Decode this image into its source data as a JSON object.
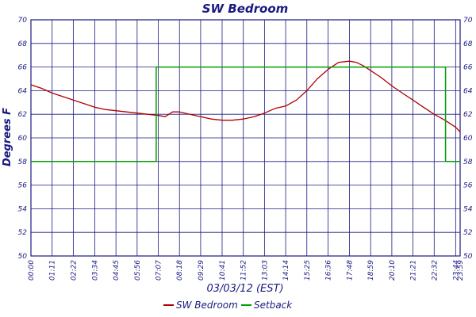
{
  "chart_data": {
    "type": "line",
    "title": "SW Bedroom",
    "xlabel": "03/03/12 (EST)",
    "ylabel": "Degrees F",
    "ylim": [
      50,
      70
    ],
    "yticks": [
      "50",
      "52",
      "54",
      "56",
      "58",
      "60",
      "62",
      "64",
      "66",
      "68",
      "70"
    ],
    "xlim": [
      "00:00",
      "23:59"
    ],
    "xticks": [
      "00:00",
      "01:11",
      "02:22",
      "03:34",
      "04:45",
      "05:56",
      "07:07",
      "08:18",
      "09:29",
      "10:41",
      "11:52",
      "13:03",
      "14:14",
      "15:25",
      "16:36",
      "17:48",
      "18:59",
      "20:10",
      "21:21",
      "22:32",
      "23:44",
      "23:59"
    ],
    "grid": true,
    "legend_position": "bottom",
    "series": [
      {
        "name": "SW Bedroom",
        "color": "#b00000",
        "points": [
          [
            "00:00",
            64.5
          ],
          [
            "00:35",
            64.2
          ],
          [
            "01:11",
            63.8
          ],
          [
            "01:46",
            63.5
          ],
          [
            "02:22",
            63.2
          ],
          [
            "02:58",
            62.9
          ],
          [
            "03:34",
            62.6
          ],
          [
            "04:09",
            62.4
          ],
          [
            "04:45",
            62.3
          ],
          [
            "05:20",
            62.2
          ],
          [
            "05:56",
            62.1
          ],
          [
            "06:31",
            62.0
          ],
          [
            "07:07",
            61.9
          ],
          [
            "07:30",
            61.8
          ],
          [
            "07:55",
            62.2
          ],
          [
            "08:18",
            62.2
          ],
          [
            "08:53",
            62.0
          ],
          [
            "09:29",
            61.8
          ],
          [
            "10:05",
            61.6
          ],
          [
            "10:41",
            61.5
          ],
          [
            "11:15",
            61.5
          ],
          [
            "11:52",
            61.6
          ],
          [
            "12:28",
            61.8
          ],
          [
            "13:03",
            62.1
          ],
          [
            "13:39",
            62.5
          ],
          [
            "14:14",
            62.7
          ],
          [
            "14:50",
            63.2
          ],
          [
            "15:25",
            64.0
          ],
          [
            "16:00",
            65.0
          ],
          [
            "16:36",
            65.8
          ],
          [
            "17:12",
            66.4
          ],
          [
            "17:48",
            66.5
          ],
          [
            "18:10",
            66.4
          ],
          [
            "18:35",
            66.1
          ],
          [
            "18:59",
            65.7
          ],
          [
            "19:35",
            65.1
          ],
          [
            "20:10",
            64.4
          ],
          [
            "20:45",
            63.8
          ],
          [
            "21:21",
            63.2
          ],
          [
            "21:56",
            62.6
          ],
          [
            "22:32",
            62.0
          ],
          [
            "23:08",
            61.5
          ],
          [
            "23:44",
            60.9
          ],
          [
            "23:59",
            60.5
          ]
        ]
      },
      {
        "name": "Setback",
        "color": "#00a000",
        "points": [
          [
            "00:00",
            58
          ],
          [
            "07:00",
            58
          ],
          [
            "07:00",
            66
          ],
          [
            "23:10",
            66
          ],
          [
            "23:10",
            58
          ],
          [
            "23:59",
            58
          ]
        ]
      }
    ]
  }
}
